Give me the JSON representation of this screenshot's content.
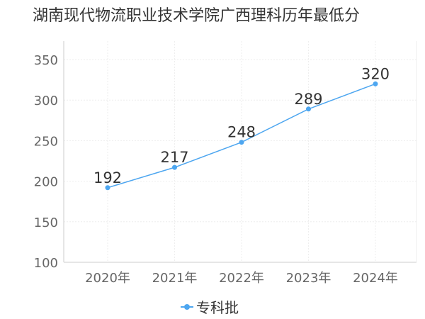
{
  "chart_data": {
    "type": "line",
    "title": "湖南现代物流职业技术学院广西理科历年最低分",
    "categories": [
      "2020年",
      "2021年",
      "2022年",
      "2023年",
      "2024年"
    ],
    "series": [
      {
        "name": "专科批",
        "values": [
          192,
          217,
          248,
          289,
          320
        ],
        "color": "#4da6f0"
      }
    ],
    "xlabel": "",
    "ylabel": "",
    "ylim": [
      100,
      350
    ],
    "yticks": [
      100,
      150,
      200,
      250,
      300,
      350
    ],
    "grid": true,
    "legend_position": "bottom-center"
  }
}
